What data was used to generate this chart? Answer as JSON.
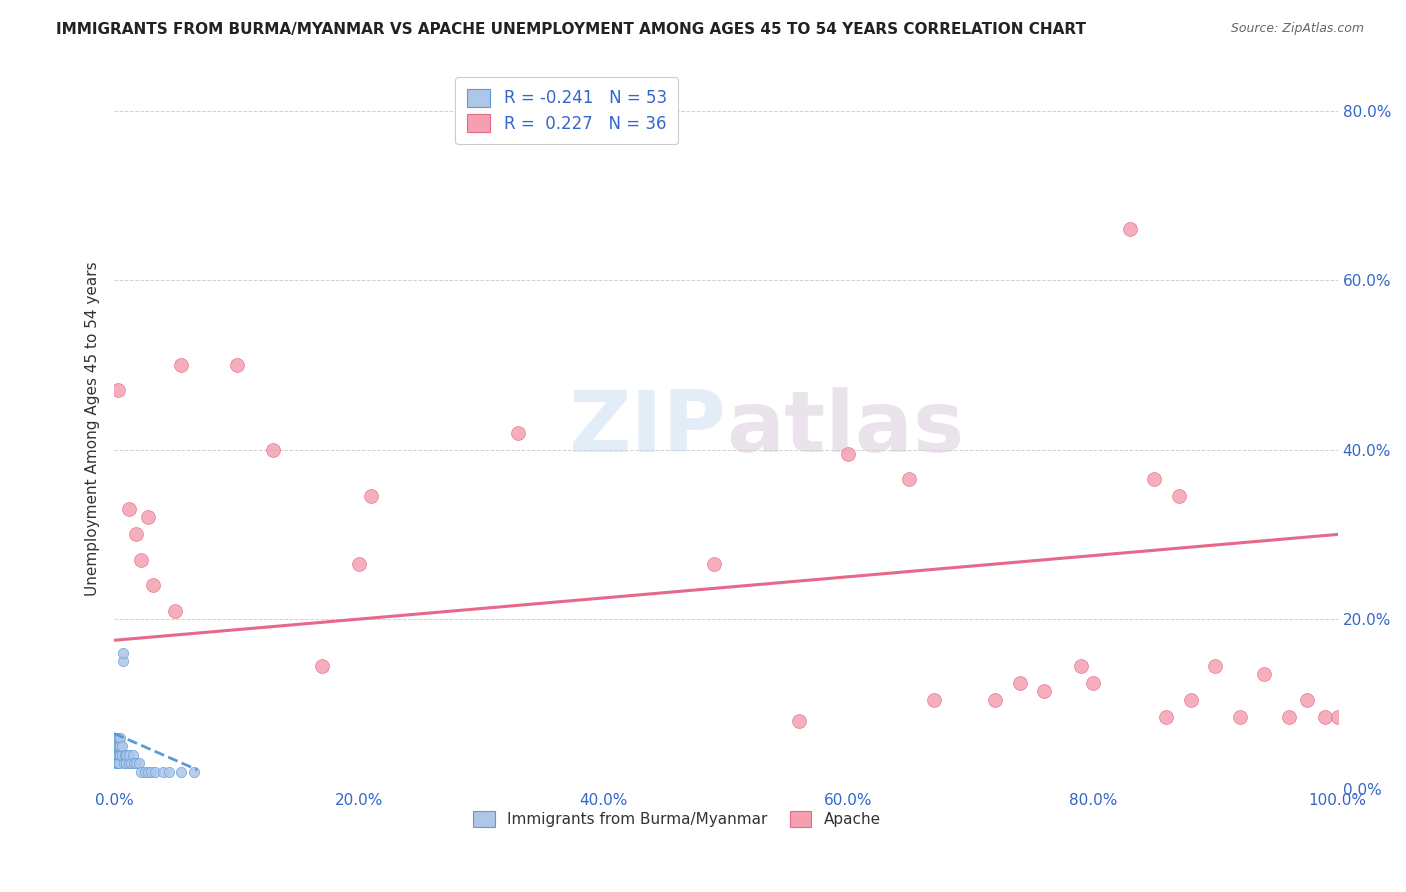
{
  "title": "IMMIGRANTS FROM BURMA/MYANMAR VS APACHE UNEMPLOYMENT AMONG AGES 45 TO 54 YEARS CORRELATION CHART",
  "source": "Source: ZipAtlas.com",
  "ylabel": "Unemployment Among Ages 45 to 54 years",
  "xlim": [
    0.0,
    1.0
  ],
  "ylim": [
    0.0,
    0.85
  ],
  "xticks": [
    0.0,
    0.2,
    0.4,
    0.6,
    0.8,
    1.0
  ],
  "xticklabels": [
    "0.0%",
    "20.0%",
    "40.0%",
    "60.0%",
    "80.0%",
    "100.0%"
  ],
  "yticks": [
    0.0,
    0.2,
    0.4,
    0.6,
    0.8
  ],
  "yticklabels": [
    "0.0%",
    "20.0%",
    "40.0%",
    "60.0%",
    "80.0%"
  ],
  "legend1_label": "R = -0.241   N = 53",
  "legend2_label": "R =  0.227   N = 36",
  "legend1_color": "#aec6e8",
  "legend2_color": "#f4a0b0",
  "line1_color": "#5b9bd5",
  "line2_color": "#e8688a",
  "scatter1_color": "#aec6e8",
  "scatter2_color": "#f4a0b0",
  "scatter1_edge": "#5b9bd5",
  "scatter2_edge": "#e8688a",
  "watermark": "ZIPatlas",
  "bottom_legend_blue": "Immigrants from Burma/Myanmar",
  "bottom_legend_pink": "Apache",
  "blue_points_x": [
    0.0005,
    0.001,
    0.001,
    0.001,
    0.001,
    0.001,
    0.0015,
    0.0015,
    0.002,
    0.002,
    0.002,
    0.002,
    0.002,
    0.002,
    0.003,
    0.003,
    0.003,
    0.003,
    0.003,
    0.003,
    0.003,
    0.003,
    0.004,
    0.004,
    0.004,
    0.004,
    0.005,
    0.005,
    0.005,
    0.006,
    0.006,
    0.007,
    0.007,
    0.008,
    0.009,
    0.01,
    0.01,
    0.012,
    0.012,
    0.014,
    0.015,
    0.016,
    0.018,
    0.02,
    0.022,
    0.025,
    0.028,
    0.03,
    0.033,
    0.04,
    0.045,
    0.055,
    0.065
  ],
  "blue_points_y": [
    0.04,
    0.05,
    0.03,
    0.04,
    0.05,
    0.06,
    0.04,
    0.05,
    0.03,
    0.04,
    0.05,
    0.06,
    0.04,
    0.05,
    0.03,
    0.04,
    0.05,
    0.06,
    0.04,
    0.05,
    0.03,
    0.04,
    0.04,
    0.05,
    0.06,
    0.03,
    0.04,
    0.05,
    0.06,
    0.04,
    0.05,
    0.15,
    0.16,
    0.03,
    0.04,
    0.03,
    0.04,
    0.03,
    0.04,
    0.03,
    0.04,
    0.03,
    0.03,
    0.03,
    0.02,
    0.02,
    0.02,
    0.02,
    0.02,
    0.02,
    0.02,
    0.02,
    0.02
  ],
  "pink_points_x": [
    0.003,
    0.012,
    0.018,
    0.022,
    0.028,
    0.032,
    0.05,
    0.055,
    0.1,
    0.13,
    0.17,
    0.2,
    0.21,
    0.33,
    0.49,
    0.56,
    0.6,
    0.65,
    0.67,
    0.72,
    0.74,
    0.76,
    0.79,
    0.8,
    0.83,
    0.85,
    0.86,
    0.87,
    0.88,
    0.9,
    0.92,
    0.94,
    0.96,
    0.975,
    0.99,
    1.0
  ],
  "pink_points_y": [
    0.47,
    0.33,
    0.3,
    0.27,
    0.32,
    0.24,
    0.21,
    0.5,
    0.5,
    0.4,
    0.145,
    0.265,
    0.345,
    0.42,
    0.265,
    0.08,
    0.395,
    0.365,
    0.105,
    0.105,
    0.125,
    0.115,
    0.145,
    0.125,
    0.66,
    0.365,
    0.085,
    0.345,
    0.105,
    0.145,
    0.085,
    0.135,
    0.085,
    0.105,
    0.085,
    0.085
  ],
  "pink_line_x0": 0.0,
  "pink_line_x1": 1.0,
  "pink_line_y0": 0.175,
  "pink_line_y1": 0.3,
  "blue_line_x0": 0.0,
  "blue_line_x1": 0.068,
  "blue_line_y0": 0.065,
  "blue_line_y1": 0.022,
  "figsize": [
    14.06,
    8.92
  ],
  "dpi": 100
}
